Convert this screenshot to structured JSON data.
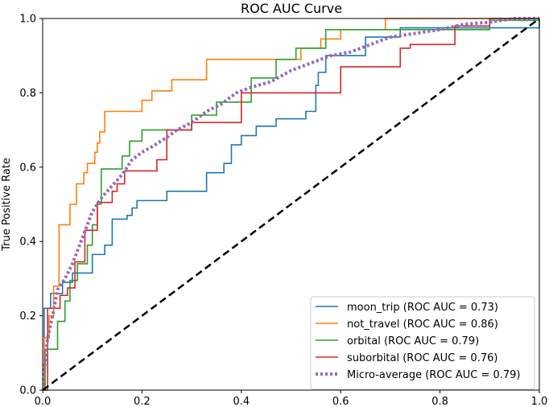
{
  "chart_data": {
    "type": "line",
    "title": "ROC AUC Curve",
    "xlabel": "",
    "ylabel": "True Positive Rate",
    "xlim": [
      0,
      1
    ],
    "ylim": [
      0,
      1
    ],
    "xticks": [
      0.0,
      0.2,
      0.4,
      0.6,
      0.8,
      1.0
    ],
    "yticks": [
      0.0,
      0.2,
      0.4,
      0.6,
      0.8,
      1.0
    ],
    "xtick_labels": [
      "0.0",
      "0.2",
      "0.4",
      "0.6",
      "0.8",
      "1.0"
    ],
    "ytick_labels": [
      "0.0",
      "0.2",
      "0.4",
      "0.6",
      "0.8",
      "1.0"
    ],
    "grid": false,
    "legend_position": "lower-right",
    "series": [
      {
        "name": "moon_trip",
        "label": "moon_trip (ROC AUC = 0.73)",
        "color": "#1f77b4",
        "style": "solid",
        "x": [
          0,
          0.003,
          0.003,
          0.016,
          0.016,
          0.04,
          0.04,
          0.06,
          0.06,
          0.065,
          0.065,
          0.1,
          0.1,
          0.125,
          0.125,
          0.14,
          0.14,
          0.155,
          0.155,
          0.17,
          0.17,
          0.18,
          0.18,
          0.19,
          0.19,
          0.25,
          0.25,
          0.33,
          0.33,
          0.365,
          0.365,
          0.38,
          0.38,
          0.4,
          0.4,
          0.43,
          0.43,
          0.47,
          0.47,
          0.53,
          0.53,
          0.55,
          0.55,
          0.555,
          0.555,
          0.57,
          0.57,
          0.65,
          0.65,
          0.72,
          0.72,
          1.0,
          1.0
        ],
        "y": [
          0,
          0,
          0.22,
          0.22,
          0.26,
          0.26,
          0.29,
          0.29,
          0.315,
          0.315,
          0.315,
          0.315,
          0.365,
          0.365,
          0.39,
          0.39,
          0.46,
          0.46,
          0.46,
          0.46,
          0.47,
          0.47,
          0.49,
          0.49,
          0.51,
          0.51,
          0.535,
          0.535,
          0.585,
          0.585,
          0.61,
          0.61,
          0.66,
          0.66,
          0.685,
          0.685,
          0.71,
          0.71,
          0.73,
          0.73,
          0.75,
          0.75,
          0.82,
          0.82,
          0.855,
          0.855,
          0.9,
          0.9,
          0.95,
          0.95,
          0.975,
          0.975,
          1.0
        ]
      },
      {
        "name": "not_travel",
        "label": "not_travel (ROC AUC = 0.86)",
        "color": "#ff7f0e",
        "style": "solid",
        "x": [
          0,
          0.003,
          0.003,
          0.013,
          0.013,
          0.022,
          0.022,
          0.033,
          0.033,
          0.055,
          0.055,
          0.068,
          0.068,
          0.083,
          0.083,
          0.09,
          0.09,
          0.105,
          0.105,
          0.11,
          0.11,
          0.115,
          0.115,
          0.125,
          0.125,
          0.155,
          0.155,
          0.2,
          0.2,
          0.22,
          0.22,
          0.26,
          0.26,
          0.33,
          0.33,
          0.52,
          0.52,
          0.56,
          0.56,
          0.6,
          0.6,
          0.69,
          0.69,
          1.0,
          1.0
        ],
        "y": [
          0,
          0,
          0.14,
          0.14,
          0.2,
          0.2,
          0.28,
          0.28,
          0.445,
          0.445,
          0.5,
          0.5,
          0.555,
          0.555,
          0.585,
          0.585,
          0.61,
          0.61,
          0.64,
          0.64,
          0.665,
          0.665,
          0.695,
          0.695,
          0.75,
          0.75,
          0.75,
          0.75,
          0.78,
          0.78,
          0.805,
          0.805,
          0.835,
          0.835,
          0.89,
          0.89,
          0.92,
          0.92,
          0.945,
          0.945,
          0.97,
          0.97,
          1.0,
          1.0,
          1.0
        ]
      },
      {
        "name": "orbital",
        "label": "orbital (ROC AUC = 0.79)",
        "color": "#2ca02c",
        "style": "solid",
        "x": [
          0,
          0.005,
          0.005,
          0.03,
          0.03,
          0.045,
          0.045,
          0.055,
          0.055,
          0.07,
          0.07,
          0.09,
          0.09,
          0.1,
          0.1,
          0.11,
          0.11,
          0.118,
          0.118,
          0.16,
          0.16,
          0.175,
          0.175,
          0.2,
          0.2,
          0.3,
          0.3,
          0.35,
          0.35,
          0.42,
          0.42,
          0.47,
          0.47,
          0.51,
          0.51,
          0.57,
          0.57,
          0.9,
          0.9,
          1.0,
          1.0
        ],
        "y": [
          0,
          0,
          0.11,
          0.11,
          0.185,
          0.185,
          0.24,
          0.24,
          0.295,
          0.295,
          0.34,
          0.34,
          0.39,
          0.39,
          0.445,
          0.445,
          0.5,
          0.5,
          0.595,
          0.595,
          0.63,
          0.63,
          0.67,
          0.67,
          0.7,
          0.7,
          0.74,
          0.74,
          0.775,
          0.775,
          0.84,
          0.84,
          0.89,
          0.89,
          0.92,
          0.92,
          0.97,
          0.97,
          0.995,
          0.995,
          1.0
        ]
      },
      {
        "name": "suborbital",
        "label": "suborbital (ROC AUC = 0.76)",
        "color": "#d62728",
        "style": "solid",
        "x": [
          0,
          0.01,
          0.01,
          0.035,
          0.035,
          0.05,
          0.05,
          0.065,
          0.065,
          0.085,
          0.085,
          0.11,
          0.11,
          0.14,
          0.14,
          0.15,
          0.15,
          0.165,
          0.165,
          0.23,
          0.23,
          0.25,
          0.25,
          0.3,
          0.3,
          0.4,
          0.4,
          0.6,
          0.6,
          0.72,
          0.72,
          0.74,
          0.74,
          0.83,
          0.83,
          0.9,
          0.9,
          1.0,
          1.0
        ],
        "y": [
          0,
          0,
          0.22,
          0.22,
          0.255,
          0.255,
          0.275,
          0.275,
          0.345,
          0.345,
          0.43,
          0.43,
          0.505,
          0.505,
          0.535,
          0.535,
          0.555,
          0.555,
          0.59,
          0.59,
          0.62,
          0.62,
          0.7,
          0.7,
          0.72,
          0.72,
          0.8,
          0.8,
          0.87,
          0.87,
          0.92,
          0.92,
          0.93,
          0.93,
          0.98,
          0.98,
          1.0,
          1.0,
          1.0
        ]
      },
      {
        "name": "Micro-average",
        "label": "Micro-average (ROC AUC = 0.79)",
        "color": "#9467bd",
        "style": "dotted",
        "x": [
          0,
          0.005,
          0.01,
          0.02,
          0.03,
          0.045,
          0.06,
          0.08,
          0.1,
          0.12,
          0.14,
          0.16,
          0.18,
          0.2,
          0.22,
          0.25,
          0.27,
          0.3,
          0.33,
          0.36,
          0.39,
          0.42,
          0.46,
          0.5,
          0.54,
          0.58,
          0.62,
          0.66,
          0.7,
          0.75,
          0.8,
          0.85,
          0.9,
          0.95,
          1.0
        ],
        "y": [
          0,
          0.08,
          0.14,
          0.2,
          0.27,
          0.3,
          0.34,
          0.41,
          0.48,
          0.52,
          0.55,
          0.58,
          0.62,
          0.64,
          0.655,
          0.68,
          0.7,
          0.72,
          0.75,
          0.77,
          0.8,
          0.815,
          0.83,
          0.86,
          0.88,
          0.9,
          0.91,
          0.93,
          0.95,
          0.96,
          0.97,
          0.985,
          0.99,
          1.0,
          1.0
        ]
      },
      {
        "name": "chance",
        "label": "",
        "color": "#000000",
        "style": "dashed",
        "x": [
          0,
          1
        ],
        "y": [
          0,
          1
        ]
      }
    ]
  }
}
